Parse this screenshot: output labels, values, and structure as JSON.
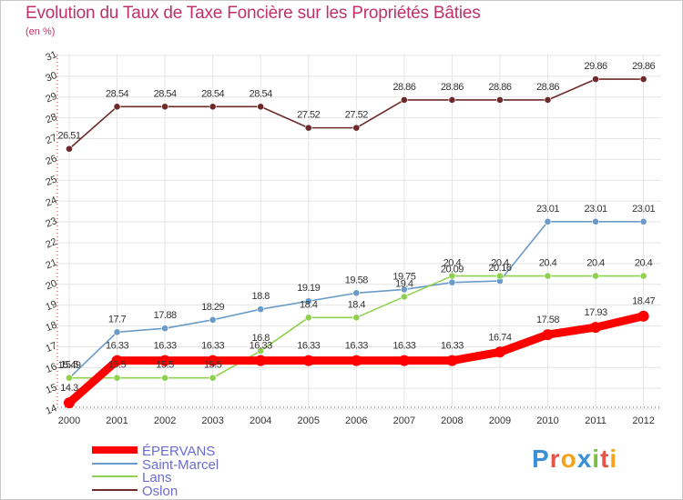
{
  "page": {
    "title": "Evolution du Taux de Taxe Foncière sur les Propriétés Bâties",
    "unit": "(en %)",
    "logo": "Proxiti"
  },
  "colors": {
    "title": "#c0306a",
    "axis": "#e02020",
    "grid": "#e4e4e4",
    "epervans": "#ff0000",
    "saint_marcel": "#6a9ac8",
    "lans": "#8fd14f",
    "oslon": "#6e2a2a"
  },
  "chart_data": {
    "type": "line",
    "title": "Evolution du Taux de Taxe Foncière sur les Propriétés Bâties",
    "ylabel": "(en %)",
    "xlabel": "",
    "ylim": [
      14,
      31
    ],
    "grid": true,
    "legend_position": "bottom-left",
    "categories": [
      "2000",
      "2001",
      "2002",
      "2003",
      "2004",
      "2005",
      "2006",
      "2007",
      "2008",
      "2009",
      "2010",
      "2011",
      "2012"
    ],
    "y_ticks": [
      "14",
      "15",
      "16",
      "17",
      "18",
      "19",
      "20",
      "21",
      "22",
      "23",
      "24",
      "25",
      "26",
      "27",
      "28",
      "29",
      "30",
      "31"
    ],
    "series": [
      {
        "name": "ÉPERVANS",
        "color": "#ff0000",
        "values": [
          14.3,
          16.33,
          16.33,
          16.33,
          16.33,
          16.33,
          16.33,
          16.33,
          16.33,
          16.74,
          17.58,
          17.93,
          18.47
        ],
        "labels": [
          "14.3",
          "16.33",
          "16.33",
          "16.33",
          "16.33",
          "16.33",
          "16.33",
          "16.33",
          "16.33",
          "16.74",
          "17.58",
          "17.93",
          "18.47"
        ]
      },
      {
        "name": "Saint-Marcel",
        "color": "#6a9ac8",
        "values": [
          15.49,
          17.7,
          17.88,
          18.29,
          18.8,
          19.19,
          19.58,
          19.75,
          20.09,
          20.16,
          23.01,
          23.01,
          23.01
        ],
        "labels": [
          "15.49",
          "17.7",
          "17.88",
          "18.29",
          "18.8",
          "19.19",
          "19.58",
          "19.75",
          "20.09",
          "20.16",
          "23.01",
          "23.01",
          "23.01"
        ]
      },
      {
        "name": "Lans",
        "color": "#8fd14f",
        "values": [
          15.5,
          15.5,
          15.5,
          15.5,
          16.8,
          18.4,
          18.4,
          19.4,
          20.4,
          20.4,
          20.4,
          20.4,
          20.4
        ],
        "labels": [
          "15.5",
          "15.5",
          "15.5",
          "15.5",
          "16.8",
          "18.4",
          "18.4",
          "19.4",
          "20.4",
          "20.4",
          "20.4",
          "20.4",
          "20.4"
        ]
      },
      {
        "name": "Oslon",
        "color": "#6e2a2a",
        "values": [
          26.51,
          28.54,
          28.54,
          28.54,
          28.54,
          27.52,
          27.52,
          28.86,
          28.86,
          28.86,
          28.86,
          29.86,
          29.86
        ],
        "labels": [
          "26.51",
          "28.54",
          "28.54",
          "28.54",
          "28.54",
          "27.52",
          "27.52",
          "28.86",
          "28.86",
          "28.86",
          "28.86",
          "29.86",
          "29.86"
        ]
      }
    ]
  }
}
